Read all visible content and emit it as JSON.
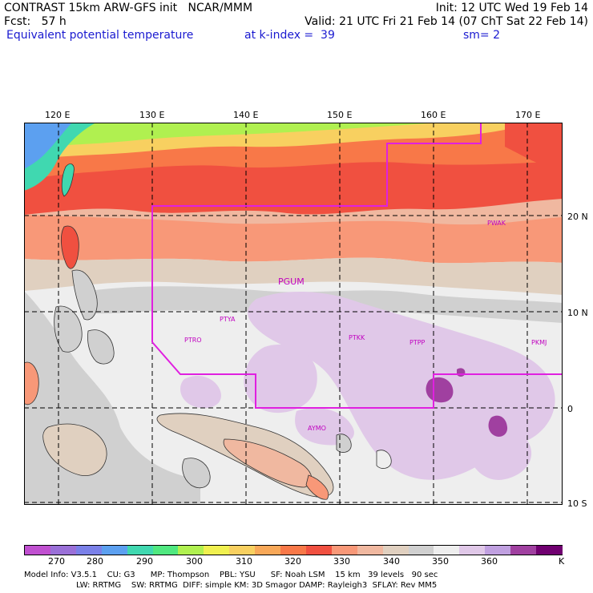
{
  "header": {
    "line1_left": "CONTRAST 15km ARW-GFS init   NCAR/MMM",
    "line1_right": "Init: 12 UTC Wed 19 Feb 14",
    "line2_left": "Fcst:   57 h",
    "line2_right": "Valid: 21 UTC Fri 21 Feb 14 (07 ChT Sat 22 Feb 14)",
    "line3_field": "Equivalent potential temperature",
    "line3_level": "at k-index =  39",
    "line3_sm": "sm= 2"
  },
  "map": {
    "lon_labels": [
      "120 E",
      "130 E",
      "140 E",
      "150 E",
      "160 E",
      "170 E"
    ],
    "lat_labels": [
      "20 N",
      "10 N",
      "0",
      "10 S"
    ],
    "stations": [
      "PGUM",
      "PTYA",
      "PTRO",
      "PTKK",
      "PTPP",
      "PKMJ",
      "PWAK",
      "AYMO"
    ],
    "colors": {
      "boundary": "#e020e0",
      "station": "#c000c0",
      "grid": "#000000"
    }
  },
  "colorbar": {
    "labels": [
      "270",
      "280",
      "290",
      "300",
      "310",
      "320",
      "330",
      "340",
      "350",
      "360",
      "K"
    ],
    "colors": [
      "#c050d0",
      "#9a70d8",
      "#7a80e8",
      "#5ca0f0",
      "#40d8b0",
      "#50e880",
      "#b0f050",
      "#f0f050",
      "#f8d060",
      "#f8a858",
      "#f87848",
      "#f05040",
      "#f89878",
      "#f0b8a0",
      "#e0d0c0",
      "#d0d0d0",
      "#eeeeee",
      "#e0c8e8",
      "#c0a0e0",
      "#a040a0",
      "#700070"
    ]
  },
  "footer": {
    "line1": "Model Info: V3.5.1    CU: G3      MP: Thompson    PBL: YSU      SF: Noah LSM    15 km   39 levels   90 sec",
    "line2": "LW: RRTMG    SW: RRTMG  DIFF: simple KM: 3D Smagor DAMP: Rayleigh3  SFLAY: Rev MM5"
  }
}
